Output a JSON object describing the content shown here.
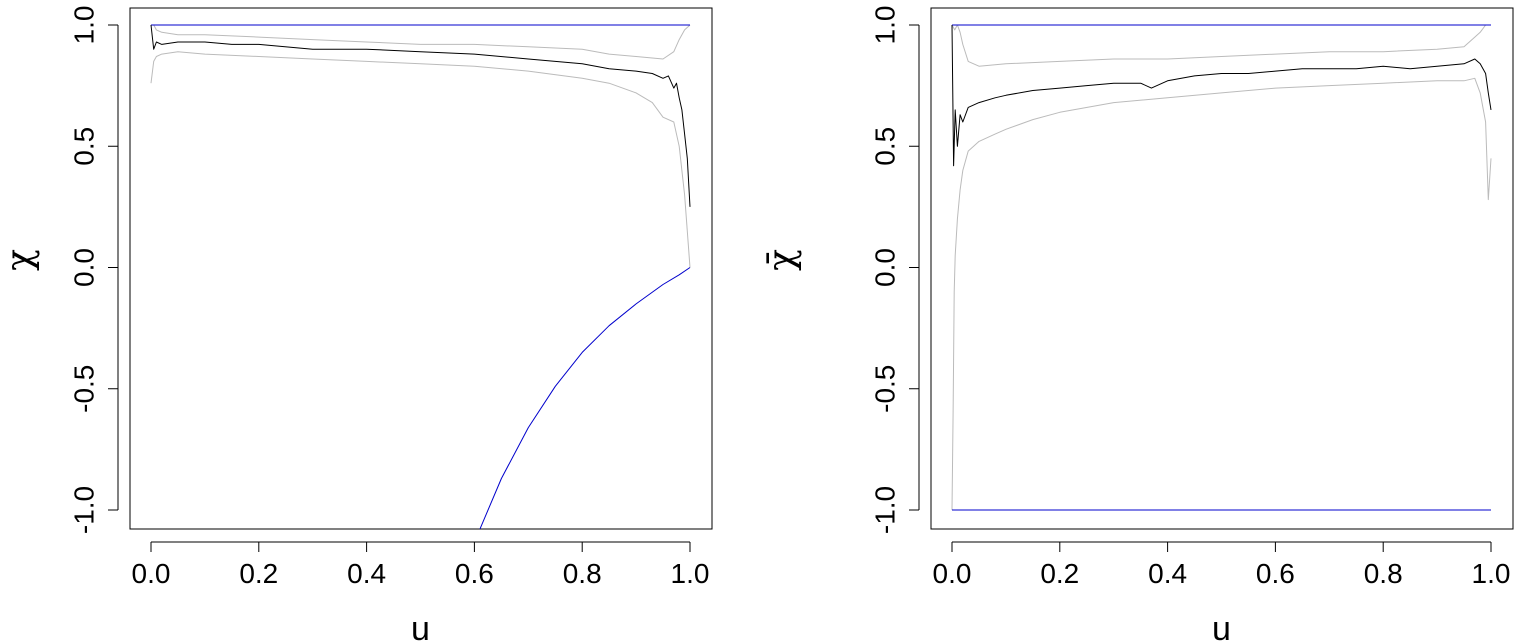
{
  "chart_data": [
    {
      "type": "line",
      "title": "",
      "xlabel": "u",
      "ylabel": "χ",
      "xlim": [
        0,
        1
      ],
      "ylim": [
        -1.05,
        1.02
      ],
      "xticks": [
        "0.0",
        "0.2",
        "0.4",
        "0.6",
        "0.8",
        "1.0"
      ],
      "yticks": [
        "-1.0",
        "-0.5",
        "0.0",
        "0.5",
        "1.0"
      ],
      "grid": false,
      "legend": "none",
      "series": [
        {
          "role": "reference-upper",
          "color": "#0000cc",
          "x": [
            0,
            1
          ],
          "y": [
            1.0,
            1.0
          ]
        },
        {
          "role": "reference-lower",
          "color": "#0000cc",
          "x": [
            0.61,
            0.65,
            0.7,
            0.75,
            0.8,
            0.85,
            0.9,
            0.95,
            0.98,
            1.0
          ],
          "y": [
            -1.08,
            -0.87,
            -0.66,
            -0.49,
            -0.35,
            -0.24,
            -0.15,
            -0.07,
            -0.03,
            0.0
          ]
        },
        {
          "role": "estimate",
          "color": "#000000",
          "x": [
            0.0,
            0.005,
            0.01,
            0.02,
            0.05,
            0.1,
            0.15,
            0.2,
            0.3,
            0.4,
            0.5,
            0.6,
            0.7,
            0.8,
            0.85,
            0.9,
            0.93,
            0.95,
            0.96,
            0.97,
            0.975,
            0.98,
            0.985,
            0.99,
            0.995,
            1.0
          ],
          "y": [
            1.0,
            0.9,
            0.93,
            0.92,
            0.93,
            0.93,
            0.92,
            0.92,
            0.9,
            0.9,
            0.89,
            0.88,
            0.86,
            0.84,
            0.82,
            0.81,
            0.8,
            0.78,
            0.79,
            0.74,
            0.76,
            0.7,
            0.65,
            0.55,
            0.45,
            0.25
          ]
        },
        {
          "role": "confidence-upper",
          "color": "#bbbbbb",
          "x": [
            0.0,
            0.005,
            0.01,
            0.02,
            0.05,
            0.1,
            0.2,
            0.3,
            0.4,
            0.5,
            0.6,
            0.7,
            0.8,
            0.85,
            0.9,
            0.95,
            0.97,
            0.98,
            0.99,
            1.0
          ],
          "y": [
            1.0,
            1.0,
            0.98,
            0.97,
            0.96,
            0.96,
            0.95,
            0.94,
            0.93,
            0.92,
            0.92,
            0.91,
            0.9,
            0.88,
            0.87,
            0.86,
            0.89,
            0.94,
            0.98,
            1.0
          ]
        },
        {
          "role": "confidence-lower",
          "color": "#bbbbbb",
          "x": [
            0.0,
            0.005,
            0.01,
            0.02,
            0.05,
            0.1,
            0.2,
            0.3,
            0.4,
            0.5,
            0.6,
            0.7,
            0.8,
            0.85,
            0.9,
            0.93,
            0.95,
            0.97,
            0.98,
            0.99,
            1.0
          ],
          "y": [
            0.76,
            0.85,
            0.87,
            0.88,
            0.89,
            0.88,
            0.87,
            0.86,
            0.85,
            0.84,
            0.83,
            0.81,
            0.78,
            0.76,
            0.72,
            0.68,
            0.62,
            0.6,
            0.5,
            0.3,
            0.0
          ]
        }
      ]
    },
    {
      "type": "line",
      "title": "",
      "xlabel": "u",
      "ylabel": "χ̄",
      "xlim": [
        0,
        1
      ],
      "ylim": [
        -1.05,
        1.02
      ],
      "xticks": [
        "0.0",
        "0.2",
        "0.4",
        "0.6",
        "0.8",
        "1.0"
      ],
      "yticks": [
        "-1.0",
        "-0.5",
        "0.0",
        "0.5",
        "1.0"
      ],
      "grid": false,
      "legend": "none",
      "series": [
        {
          "role": "reference-upper",
          "color": "#0000cc",
          "x": [
            0,
            1
          ],
          "y": [
            1.0,
            1.0
          ]
        },
        {
          "role": "reference-lower",
          "color": "#0000cc",
          "x": [
            0,
            1
          ],
          "y": [
            -1.0,
            -1.0
          ]
        },
        {
          "role": "estimate",
          "color": "#000000",
          "x": [
            0.0,
            0.003,
            0.006,
            0.01,
            0.015,
            0.02,
            0.03,
            0.05,
            0.08,
            0.1,
            0.15,
            0.2,
            0.25,
            0.3,
            0.35,
            0.37,
            0.4,
            0.45,
            0.5,
            0.55,
            0.6,
            0.65,
            0.7,
            0.75,
            0.8,
            0.85,
            0.9,
            0.95,
            0.97,
            0.98,
            0.99,
            0.995,
            1.0
          ],
          "y": [
            1.0,
            0.42,
            0.65,
            0.5,
            0.63,
            0.6,
            0.66,
            0.68,
            0.7,
            0.71,
            0.73,
            0.74,
            0.75,
            0.76,
            0.76,
            0.74,
            0.77,
            0.79,
            0.8,
            0.8,
            0.81,
            0.82,
            0.82,
            0.82,
            0.83,
            0.82,
            0.83,
            0.84,
            0.86,
            0.84,
            0.8,
            0.72,
            0.65
          ]
        },
        {
          "role": "confidence-upper",
          "color": "#bbbbbb",
          "x": [
            0.0,
            0.005,
            0.01,
            0.015,
            0.02,
            0.03,
            0.05,
            0.1,
            0.2,
            0.3,
            0.4,
            0.5,
            0.6,
            0.7,
            0.8,
            0.9,
            0.95,
            0.97,
            0.98,
            0.99,
            1.0
          ],
          "y": [
            1.0,
            0.98,
            1.0,
            0.97,
            0.92,
            0.85,
            0.83,
            0.84,
            0.85,
            0.86,
            0.86,
            0.87,
            0.88,
            0.89,
            0.89,
            0.9,
            0.91,
            0.95,
            0.97,
            1.0,
            1.0
          ]
        },
        {
          "role": "confidence-lower",
          "color": "#bbbbbb",
          "x": [
            0.0,
            0.002,
            0.004,
            0.006,
            0.01,
            0.015,
            0.02,
            0.03,
            0.05,
            0.08,
            0.1,
            0.15,
            0.2,
            0.3,
            0.4,
            0.5,
            0.6,
            0.7,
            0.8,
            0.9,
            0.95,
            0.97,
            0.98,
            0.99,
            0.995,
            1.0
          ],
          "y": [
            -1.0,
            -0.6,
            -0.1,
            0.05,
            0.2,
            0.32,
            0.4,
            0.48,
            0.52,
            0.55,
            0.57,
            0.61,
            0.64,
            0.68,
            0.7,
            0.72,
            0.74,
            0.75,
            0.76,
            0.77,
            0.77,
            0.78,
            0.72,
            0.6,
            0.28,
            0.45
          ]
        }
      ]
    }
  ]
}
